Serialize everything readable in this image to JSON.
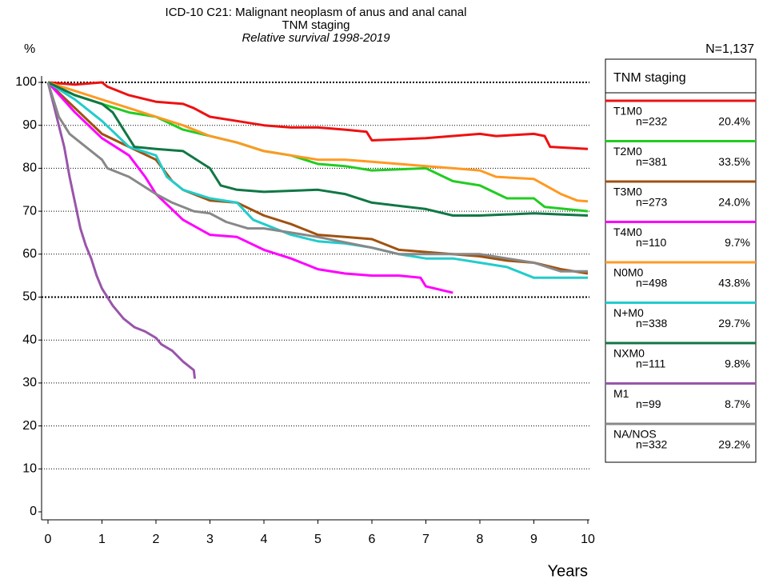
{
  "chart_data": {
    "type": "line",
    "title": "ICD-10 C21: Malignant neoplasm of anus and anal canal",
    "subtitle": "TNM staging",
    "caption": "Relative survival 1998-2019",
    "y_label": "%",
    "x_label": "Years",
    "total_label": "N=1,137",
    "legend_title": "TNM staging",
    "xlim": [
      0,
      10
    ],
    "xticks": [
      0,
      1,
      2,
      3,
      4,
      5,
      6,
      7,
      8,
      9,
      10
    ],
    "ylim": [
      0,
      100
    ],
    "yticks": [
      0,
      10,
      20,
      30,
      40,
      50,
      60,
      70,
      80,
      90,
      100
    ],
    "grid": true,
    "major_gridlines": [
      50,
      100
    ],
    "series": [
      {
        "name": "T1M0",
        "n_label": "n=232",
        "share_label": "20.4%",
        "color": "#ee1111",
        "x": [
          0,
          0.5,
          1,
          1.1,
          1.5,
          2,
          2.5,
          2.7,
          3,
          3.5,
          4,
          4.5,
          5,
          5.5,
          5.9,
          6,
          7,
          8,
          8.3,
          9,
          9.2,
          9.3,
          10
        ],
        "values": [
          100,
          99.5,
          100,
          99,
          97,
          95.5,
          95,
          94,
          92,
          91,
          90,
          89.5,
          89.5,
          89,
          88.5,
          86.5,
          87,
          88,
          87.5,
          88,
          87.5,
          85,
          84.5
        ]
      },
      {
        "name": "T2M0",
        "n_label": "n=381",
        "share_label": "33.5%",
        "color": "#22cc22",
        "x": [
          0,
          0.5,
          1,
          1.5,
          2,
          2.5,
          3,
          3.5,
          4,
          4.5,
          5,
          5.5,
          6,
          7,
          7.5,
          8,
          8.5,
          9,
          9.2,
          10
        ],
        "values": [
          100,
          97,
          95,
          93,
          92,
          89,
          87.5,
          86,
          84,
          83,
          81,
          80.5,
          79.5,
          80,
          77,
          76,
          73,
          73,
          71,
          70
        ]
      },
      {
        "name": "T3M0",
        "n_label": "n=273",
        "share_label": "24.0%",
        "color": "#a0520f",
        "x": [
          0,
          0.5,
          1,
          1.5,
          2,
          2.3,
          2.5,
          3,
          3.5,
          4,
          4.5,
          5,
          5.5,
          6,
          6.5,
          7,
          8,
          8.5,
          9,
          9.5,
          10
        ],
        "values": [
          100,
          94,
          88,
          85,
          82,
          77,
          75,
          72.5,
          72,
          69,
          67,
          64.5,
          64,
          63.5,
          61,
          60.5,
          59.5,
          58.5,
          58,
          56.5,
          55.5
        ]
      },
      {
        "name": "T4M0",
        "n_label": "n=110",
        "share_label": "9.7%",
        "color": "#ff00ff",
        "x": [
          0,
          0.5,
          1,
          1.5,
          1.8,
          2,
          2.5,
          3,
          3.5,
          4,
          4.5,
          5,
          5.5,
          6,
          6.5,
          6.9,
          7,
          7.5
        ],
        "values": [
          100,
          93,
          87,
          83,
          78,
          74,
          68,
          64.5,
          64,
          61,
          59,
          56.5,
          55.5,
          55,
          55,
          54.5,
          52.5,
          51
        ]
      },
      {
        "name": "N0M0",
        "n_label": "n=498",
        "share_label": "43.8%",
        "color": "#ff9922",
        "x": [
          0,
          0.5,
          1,
          1.5,
          2,
          2.5,
          3,
          3.5,
          4,
          4.5,
          5,
          5.5,
          6,
          6.5,
          7,
          7.5,
          8,
          8.3,
          9,
          9.5,
          9.8,
          10
        ],
        "values": [
          100,
          98,
          96,
          94,
          92,
          90,
          87.5,
          86,
          84,
          83,
          82,
          82,
          81.5,
          81,
          80.5,
          80,
          79.5,
          78,
          77.5,
          74,
          72.5,
          72.3
        ]
      },
      {
        "name": "N+M0",
        "n_label": "n=338",
        "share_label": "29.7%",
        "color": "#22cccc",
        "x": [
          0,
          0.5,
          1,
          1.5,
          2,
          2.2,
          2.5,
          3,
          3.5,
          3.8,
          4,
          4.5,
          5,
          5.5,
          6,
          6.5,
          7,
          7.5,
          8,
          8.5,
          9,
          10
        ],
        "values": [
          100,
          96,
          91,
          85,
          83,
          78,
          75,
          73,
          72,
          68,
          67,
          64.5,
          63,
          62.5,
          61.5,
          60,
          59,
          59,
          58,
          57,
          54.5,
          54.5
        ]
      },
      {
        "name": "NXM0",
        "n_label": "n=111",
        "share_label": "9.8%",
        "color": "#117744",
        "x": [
          0,
          0.5,
          1,
          1.2,
          1.6,
          2,
          2.5,
          3,
          3.2,
          3.5,
          4,
          5,
          5.5,
          6,
          7,
          7.5,
          8,
          9,
          10
        ],
        "values": [
          100,
          97,
          95,
          93,
          85,
          84.5,
          84,
          80,
          76,
          75,
          74.5,
          75,
          74,
          72,
          70.5,
          69,
          69,
          69.5,
          69
        ]
      },
      {
        "name": "M1",
        "n_label": "n=99",
        "share_label": "8.7%",
        "color": "#9955aa",
        "x": [
          0,
          0.1,
          0.2,
          0.3,
          0.4,
          0.5,
          0.6,
          0.7,
          0.8,
          0.9,
          1,
          1.2,
          1.4,
          1.6,
          1.8,
          2,
          2.1,
          2.3,
          2.5,
          2.7,
          2.72
        ],
        "values": [
          100,
          95,
          90,
          85,
          78,
          72,
          66,
          62,
          59,
          55,
          52,
          48,
          45,
          43,
          42,
          40.5,
          39,
          37.5,
          35,
          33,
          31
        ]
      },
      {
        "name": "NA/NOS",
        "n_label": "n=332",
        "share_label": "29.2%",
        "color": "#888888",
        "x": [
          0,
          0.2,
          0.4,
          0.6,
          0.8,
          1,
          1.1,
          1.5,
          2,
          2.3,
          2.7,
          3,
          3.3,
          3.7,
          4,
          4.5,
          5,
          6,
          6.5,
          7,
          8,
          9,
          9.5,
          10
        ],
        "values": [
          100,
          92,
          88,
          86,
          84,
          82,
          80,
          78,
          74,
          72,
          70,
          69.5,
          67.5,
          66,
          66,
          65,
          64,
          61.5,
          60,
          60,
          60,
          58,
          56,
          56
        ]
      }
    ]
  }
}
